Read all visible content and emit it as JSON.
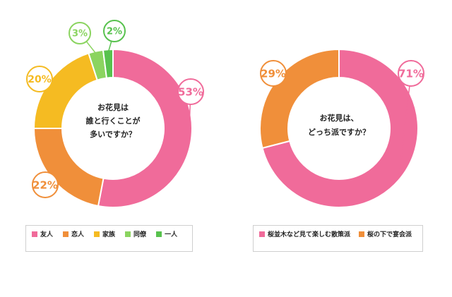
{
  "colors": {
    "pink": "#f06b9a",
    "orange": "#f08f3a",
    "yellow": "#f5bb22",
    "lightgreen": "#8bd460",
    "green": "#58c24e",
    "center": "#ffffff"
  },
  "chart_data": [
    {
      "type": "pie",
      "title": "お花見は誰と行くことが多いですか？",
      "title_lines": [
        "お花見は",
        "誰と行くことが",
        "多いですか？"
      ],
      "categories": [
        "友人",
        "恋人",
        "家族",
        "同僚",
        "一人"
      ],
      "values": [
        53,
        22,
        20,
        3,
        2
      ],
      "labels": [
        "53%",
        "22%",
        "20%",
        "3%",
        "2%"
      ],
      "colors": [
        "pink",
        "orange",
        "yellow",
        "lightgreen",
        "green"
      ],
      "legend_position": "bottom"
    },
    {
      "type": "pie",
      "title": "お花見は、どっち派ですか？",
      "title_lines": [
        "お花見は、",
        "どっち派ですか？"
      ],
      "categories": [
        "桜並木など見て楽しむ散策派",
        "桜の下で宴会派"
      ],
      "values": [
        71,
        29
      ],
      "labels": [
        "71%",
        "29%"
      ],
      "colors": [
        "pink",
        "orange"
      ],
      "legend_position": "bottom"
    }
  ]
}
